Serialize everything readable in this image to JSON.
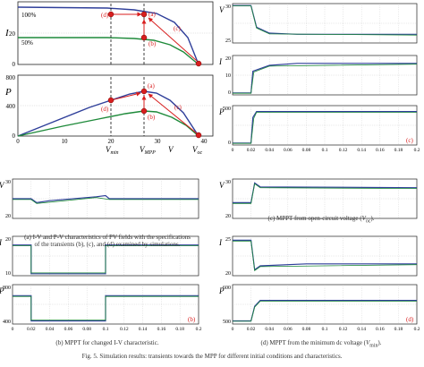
{
  "captions": {
    "a_line1": "(a) I-V and P-V characteristics of PV fields with the specifications",
    "a_line2": "of the transients (b), (c), and (d) examined by simulations.",
    "b": "(b) MPPT for changed I-V characteristic.",
    "c_prefix": "(c) MPPT from open-circuit voltage (",
    "c_var": "V",
    "c_sub": "oc",
    "c_suffix": ").",
    "d_prefix": "(d) MPPT from the minimum dc voltage (",
    "d_var": "V",
    "d_sub": "min",
    "d_suffix": ").",
    "figure": "Fig. 5. Simulation results: transients towards the MPP for different initial conditions and characteristics."
  },
  "panel_a": {
    "iv": {
      "ylabel": "I",
      "yticks": [
        "20",
        "0"
      ],
      "curve_labels": [
        "100%",
        "50%"
      ],
      "markers": [
        "(d)",
        "(a)",
        "(b)",
        "(c)"
      ]
    },
    "pv": {
      "ylabel": "P",
      "yticks": [
        "800",
        "400",
        "0"
      ],
      "xticks": [
        "0",
        "10",
        "20",
        "30",
        "40"
      ],
      "x_var": "V",
      "markers": [
        "(d)",
        "(a)",
        "(b)",
        "(c)"
      ],
      "axis_notes": [
        {
          "main": "V",
          "sub": "min"
        },
        {
          "main": "V",
          "sub": "MPP"
        },
        {
          "main": "V",
          "sub": ""
        },
        {
          "main": "V",
          "sub": "oc"
        }
      ]
    }
  },
  "panel_b": {
    "tag": "(b)",
    "xticks": [
      "0",
      "0.02",
      "0.04",
      "0.06",
      "0.08",
      "0.1",
      "0.12",
      "0.14",
      "0.16",
      "0.18",
      "0.2"
    ],
    "subplots": [
      {
        "label": "V",
        "yticks": [
          "30",
          "20"
        ]
      },
      {
        "label": "I",
        "yticks": [
          "20",
          "10"
        ]
      },
      {
        "label": "P",
        "yticks": [
          "800",
          "400"
        ]
      }
    ]
  },
  "panel_c": {
    "tag": "(c)",
    "xticks": [
      "0",
      "0.02",
      "0.04",
      "0.06",
      "0.08",
      "0.1",
      "0.12",
      "0.14",
      "0.16",
      "0.18",
      "0.2"
    ],
    "subplots": [
      {
        "label": "V",
        "yticks": [
          "30",
          "25"
        ]
      },
      {
        "label": "I",
        "yticks": [
          "20",
          "10",
          "0"
        ]
      },
      {
        "label": "P",
        "yticks": [
          "500",
          "0"
        ]
      }
    ]
  },
  "panel_d": {
    "tag": "(d)",
    "xticks": [
      "0",
      "0.02",
      "0.04",
      "0.06",
      "0.08",
      "0.1",
      "0.12",
      "0.14",
      "0.16",
      "0.18",
      "0.2"
    ],
    "subplots": [
      {
        "label": "V",
        "yticks": [
          "30",
          "20"
        ]
      },
      {
        "label": "I",
        "yticks": [
          "25",
          "20"
        ]
      },
      {
        "label": "P",
        "yticks": [
          "600",
          "500"
        ]
      }
    ]
  },
  "colors": {
    "blue": "#2f3f9a",
    "green": "#1e8a3a",
    "red": "#d81e1e",
    "axis": "#222222",
    "grid": "#bbbbbb"
  }
}
